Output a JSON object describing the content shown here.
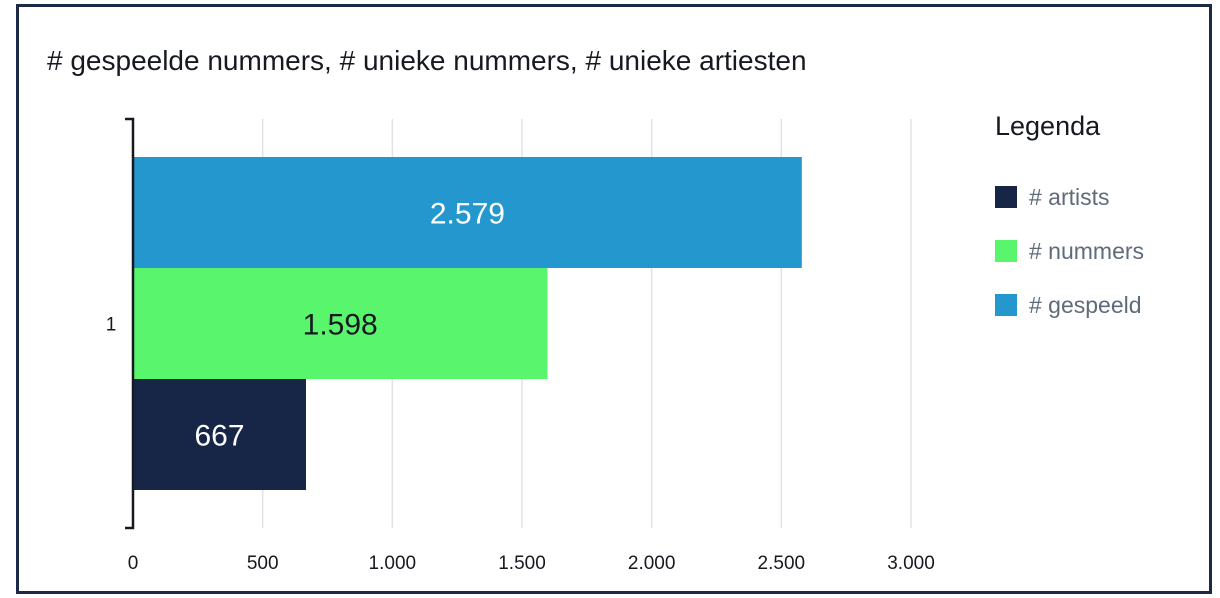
{
  "chart_data": {
    "type": "bar",
    "orientation": "horizontal",
    "title": "# gespeelde nummers, # unieke nummers, # unieke artiesten",
    "categories": [
      "1"
    ],
    "series": [
      {
        "name": "# artists",
        "color": "#172647",
        "label_color": "#ffffff",
        "values": [
          667
        ],
        "value_labels": [
          "667"
        ]
      },
      {
        "name": "# nummers",
        "color": "#59f56c",
        "label_color": "#16191f",
        "values": [
          1598
        ],
        "value_labels": [
          "1.598"
        ]
      },
      {
        "name": "# gespeeld",
        "color": "#2497cf",
        "label_color": "#ffffff",
        "values": [
          2579
        ],
        "value_labels": [
          "2.579"
        ]
      }
    ],
    "xlim": [
      0,
      3000
    ],
    "x_ticks": [
      0,
      500,
      1000,
      1500,
      2000,
      2500,
      3000
    ],
    "x_tick_labels": [
      "0",
      "500",
      "1.000",
      "1.500",
      "2.000",
      "2.500",
      "3.000"
    ],
    "grid": true,
    "legend": {
      "title": "Legenda",
      "position": "right"
    }
  }
}
